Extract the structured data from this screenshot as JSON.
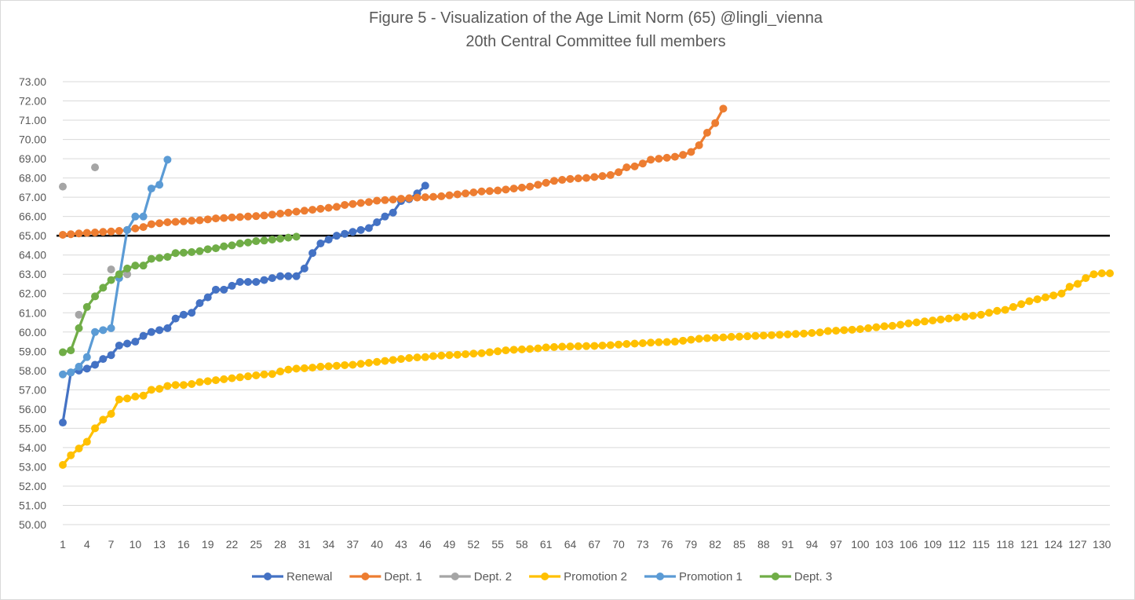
{
  "chart_data": {
    "type": "line",
    "title": "Figure 5 - Visualization of the Age Limit Norm (65) @lingli_vienna",
    "subtitle": "20th Central Committee full members",
    "xlabel": "",
    "ylabel": "",
    "ylim": [
      50,
      73
    ],
    "y_ticks": [
      "50.00",
      "51.00",
      "52.00",
      "53.00",
      "54.00",
      "55.00",
      "56.00",
      "57.00",
      "58.00",
      "59.00",
      "60.00",
      "61.00",
      "62.00",
      "63.00",
      "64.00",
      "65.00",
      "66.00",
      "67.00",
      "68.00",
      "69.00",
      "70.00",
      "71.00",
      "72.00",
      "73.00"
    ],
    "x_ticks": [
      "1",
      "4",
      "7",
      "10",
      "13",
      "16",
      "19",
      "22",
      "25",
      "28",
      "31",
      "34",
      "37",
      "40",
      "43",
      "46",
      "49",
      "52",
      "55",
      "58",
      "61",
      "64",
      "67",
      "70",
      "73",
      "76",
      "79",
      "82",
      "85",
      "88",
      "91",
      "94",
      "97",
      "100",
      "103",
      "106",
      "109",
      "112",
      "115",
      "118",
      "121",
      "124",
      "127",
      "130"
    ],
    "x_range": [
      1,
      131
    ],
    "grid": "horizontal",
    "legend_position": "bottom",
    "reference_line": {
      "y": 65,
      "color": "#000000"
    },
    "series": [
      {
        "name": "Renewal",
        "color": "#4472C4",
        "values": [
          55.3,
          57.9,
          58.0,
          58.1,
          58.3,
          58.6,
          58.8,
          59.3,
          59.4,
          59.5,
          59.8,
          60.0,
          60.1,
          60.2,
          60.7,
          60.9,
          61.0,
          61.5,
          61.8,
          62.2,
          62.2,
          62.4,
          62.6,
          62.6,
          62.6,
          62.7,
          62.8,
          62.9,
          62.9,
          62.9,
          63.3,
          64.1,
          64.6,
          64.8,
          65.0,
          65.1,
          65.2,
          65.3,
          65.4,
          65.7,
          66.0,
          66.2,
          66.8,
          66.9,
          67.2,
          67.6
        ]
      },
      {
        "name": "Dept. 1",
        "color": "#ED7D31",
        "values": [
          65.05,
          65.08,
          65.12,
          65.15,
          65.17,
          65.2,
          65.22,
          65.25,
          65.3,
          65.38,
          65.45,
          65.6,
          65.65,
          65.7,
          65.72,
          65.75,
          65.78,
          65.8,
          65.85,
          65.9,
          65.92,
          65.95,
          65.97,
          66.0,
          66.02,
          66.05,
          66.1,
          66.15,
          66.2,
          66.25,
          66.3,
          66.35,
          66.4,
          66.45,
          66.5,
          66.6,
          66.65,
          66.7,
          66.75,
          66.82,
          66.85,
          66.88,
          66.92,
          66.95,
          66.98,
          67.0,
          67.02,
          67.05,
          67.1,
          67.15,
          67.2,
          67.25,
          67.3,
          67.32,
          67.35,
          67.4,
          67.45,
          67.5,
          67.55,
          67.65,
          67.75,
          67.85,
          67.9,
          67.95,
          67.98,
          68.0,
          68.05,
          68.1,
          68.15,
          68.3,
          68.55,
          68.6,
          68.75,
          68.95,
          69.0,
          69.05,
          69.1,
          69.2,
          69.35,
          69.7,
          70.35,
          70.85,
          71.6
        ]
      },
      {
        "name": "Dept. 2",
        "color": "#A5A5A5",
        "points": [
          [
            1,
            67.55
          ],
          [
            3,
            60.9
          ],
          [
            5,
            68.55
          ],
          [
            7,
            63.25
          ],
          [
            9,
            63.0
          ]
        ]
      },
      {
        "name": "Promotion 2",
        "color": "#FFC000",
        "values": [
          53.1,
          53.6,
          53.95,
          54.3,
          55.0,
          55.45,
          55.75,
          56.5,
          56.55,
          56.65,
          56.7,
          57.0,
          57.05,
          57.2,
          57.25,
          57.25,
          57.3,
          57.4,
          57.45,
          57.5,
          57.55,
          57.6,
          57.65,
          57.7,
          57.75,
          57.8,
          57.82,
          57.95,
          58.05,
          58.1,
          58.12,
          58.15,
          58.2,
          58.22,
          58.25,
          58.28,
          58.3,
          58.35,
          58.4,
          58.45,
          58.5,
          58.55,
          58.6,
          58.65,
          58.68,
          58.7,
          58.75,
          58.78,
          58.8,
          58.82,
          58.85,
          58.88,
          58.9,
          58.95,
          59.0,
          59.05,
          59.08,
          59.1,
          59.12,
          59.15,
          59.2,
          59.22,
          59.24,
          59.25,
          59.26,
          59.27,
          59.28,
          59.3,
          59.32,
          59.35,
          59.38,
          59.4,
          59.42,
          59.45,
          59.47,
          59.48,
          59.5,
          59.55,
          59.6,
          59.65,
          59.68,
          59.7,
          59.72,
          59.75,
          59.76,
          59.78,
          59.8,
          59.82,
          59.84,
          59.86,
          59.88,
          59.9,
          59.92,
          59.95,
          59.98,
          60.05,
          60.07,
          60.1,
          60.12,
          60.15,
          60.2,
          60.25,
          60.3,
          60.32,
          60.38,
          60.45,
          60.5,
          60.55,
          60.6,
          60.65,
          60.7,
          60.75,
          60.8,
          60.85,
          60.9,
          61.0,
          61.1,
          61.15,
          61.3,
          61.45,
          61.6,
          61.7,
          61.8,
          61.9,
          62.0,
          62.35,
          62.5,
          62.8,
          63.0,
          63.05,
          63.05
        ]
      },
      {
        "name": "Promotion 1",
        "color": "#5B9BD5",
        "values": [
          57.8,
          57.9,
          58.2,
          58.7,
          60.0,
          60.1,
          60.2,
          62.8,
          65.3,
          66.0,
          66.0,
          67.45,
          67.65,
          68.95
        ]
      },
      {
        "name": "Dept. 3",
        "color": "#70AD47",
        "values": [
          58.95,
          59.05,
          60.2,
          61.3,
          61.85,
          62.3,
          62.7,
          63.0,
          63.3,
          63.45,
          63.45,
          63.8,
          63.85,
          63.9,
          64.1,
          64.12,
          64.15,
          64.2,
          64.3,
          64.35,
          64.45,
          64.5,
          64.6,
          64.65,
          64.72,
          64.75,
          64.8,
          64.85,
          64.9,
          64.95
        ]
      }
    ]
  }
}
